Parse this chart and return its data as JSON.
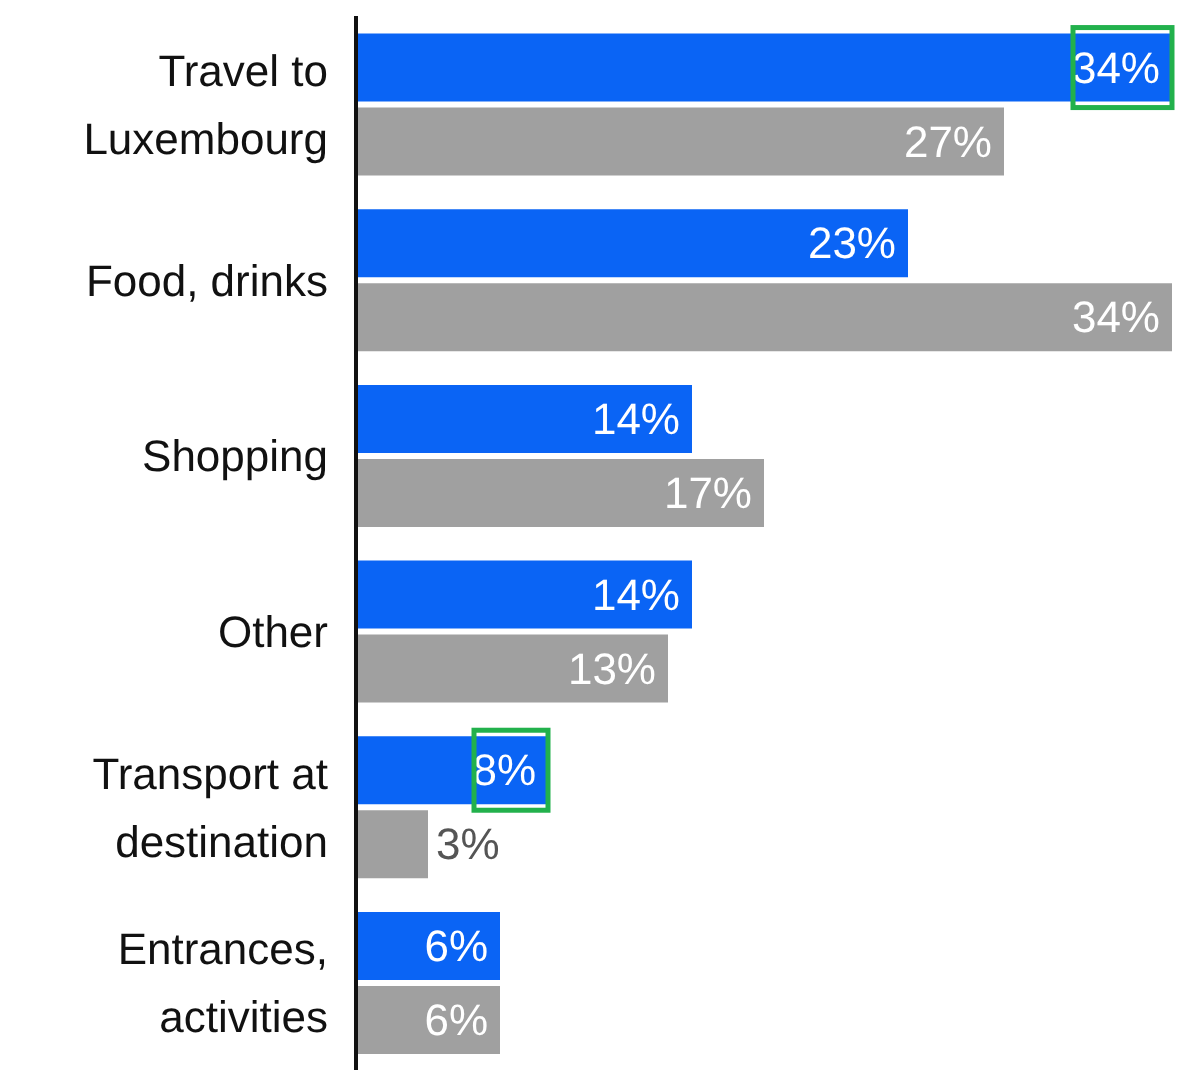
{
  "chart_data": {
    "type": "bar",
    "orientation": "horizontal",
    "categories": [
      "Travel to Luxembourg",
      "Food, drinks",
      "Shopping",
      "Other",
      "Transport at destination",
      "Entrances, activities"
    ],
    "series": [
      {
        "color": "#0a64f5",
        "values": [
          34,
          23,
          14,
          14,
          8,
          6
        ],
        "value_labels": [
          "34%",
          "23%",
          "14%",
          "14%",
          "8%",
          "6%"
        ]
      },
      {
        "color": "#a0a0a0",
        "values": [
          27,
          34,
          17,
          13,
          3,
          6
        ],
        "value_labels": [
          "27%",
          "34%",
          "17%",
          "13%",
          "3%",
          "6%"
        ]
      }
    ]
  }
}
